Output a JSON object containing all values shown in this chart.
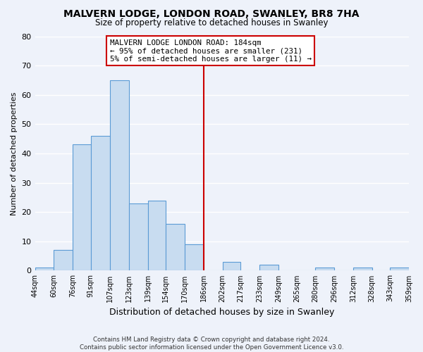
{
  "title": "MALVERN LODGE, LONDON ROAD, SWANLEY, BR8 7HA",
  "subtitle": "Size of property relative to detached houses in Swanley",
  "xlabel": "Distribution of detached houses by size in Swanley",
  "ylabel": "Number of detached properties",
  "bin_edges": [
    44,
    60,
    76,
    91,
    107,
    123,
    139,
    154,
    170,
    186,
    202,
    217,
    233,
    249,
    265,
    280,
    296,
    312,
    328,
    343,
    359
  ],
  "counts": [
    1,
    7,
    43,
    46,
    65,
    23,
    24,
    16,
    9,
    0,
    3,
    0,
    2,
    0,
    0,
    1,
    0,
    1,
    0,
    1
  ],
  "bar_color": "#c8dcf0",
  "bar_edge_color": "#5b9bd5",
  "vline_x": 186,
  "vline_color": "#cc0000",
  "annotation_title": "MALVERN LODGE LONDON ROAD: 184sqm",
  "annotation_line1": "← 95% of detached houses are smaller (231)",
  "annotation_line2": "5% of semi-detached houses are larger (11) →",
  "annotation_box_edge": "#cc0000",
  "tick_labels": [
    "44sqm",
    "60sqm",
    "76sqm",
    "91sqm",
    "107sqm",
    "123sqm",
    "139sqm",
    "154sqm",
    "170sqm",
    "186sqm",
    "202sqm",
    "217sqm",
    "233sqm",
    "249sqm",
    "265sqm",
    "280sqm",
    "296sqm",
    "312sqm",
    "328sqm",
    "343sqm",
    "359sqm"
  ],
  "ylim": [
    0,
    80
  ],
  "yticks": [
    0,
    10,
    20,
    30,
    40,
    50,
    60,
    70,
    80
  ],
  "background_color": "#eef2fa",
  "grid_color": "white",
  "footer_line1": "Contains HM Land Registry data © Crown copyright and database right 2024.",
  "footer_line2": "Contains public sector information licensed under the Open Government Licence v3.0."
}
